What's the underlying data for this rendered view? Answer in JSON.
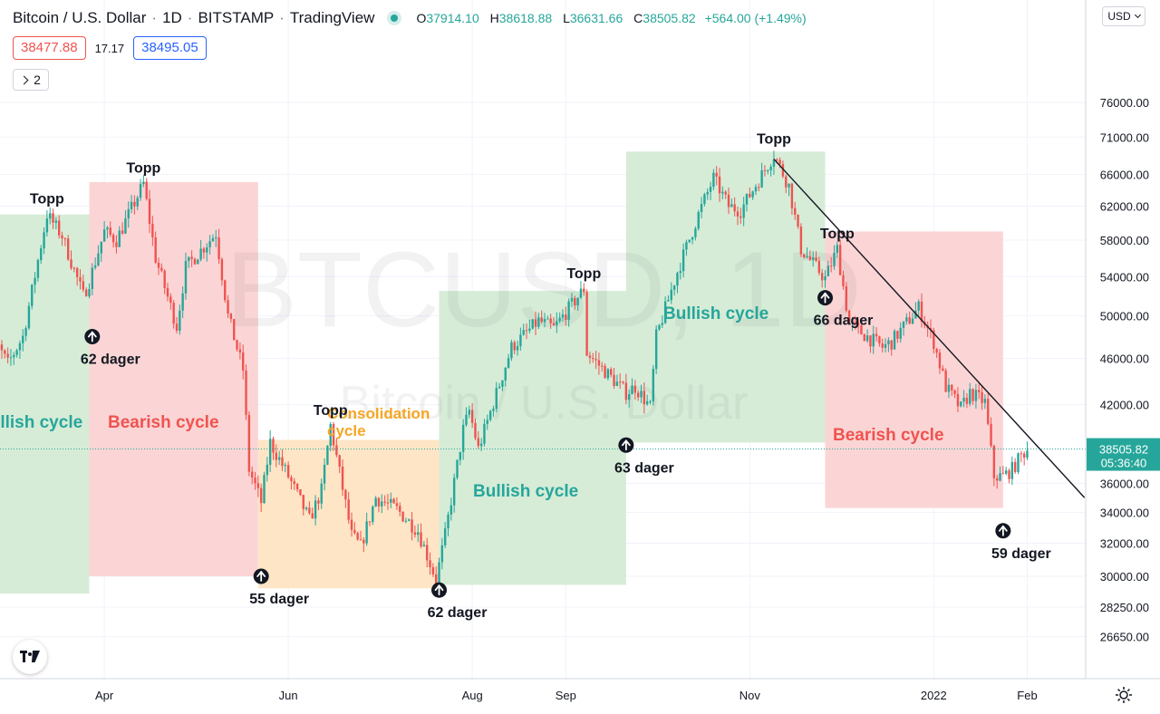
{
  "header": {
    "symbol": "Bitcoin / U.S. Dollar",
    "interval": "1D",
    "exchange": "BITSTAMP",
    "platform": "TradingView",
    "open_label": "O",
    "open": "37914.10",
    "high_label": "H",
    "high": "38618.88",
    "low_label": "L",
    "low": "36631.66",
    "close_label": "C",
    "close": "38505.82",
    "change": "+564.00 (+1.49%)",
    "bid": "38477.88",
    "spread": "17.17",
    "ask": "38495.05",
    "indicators_count": "2",
    "currency": "USD"
  },
  "watermark": {
    "symbol": "BTCUSD, 1D",
    "name": "Bitcoin / U.S. Dollar"
  },
  "colors": {
    "up": "#26a69a",
    "down": "#ef5350",
    "bull_zone": "#d6ecd7",
    "bear_zone": "#fbd5d5",
    "consol_zone": "#fde5c6",
    "bull_text": "#26a69a",
    "bear_text": "#ef5350",
    "consol_text": "#f5a623",
    "trendline": "#131722",
    "price_line": "#26a69a"
  },
  "chart_data": {
    "type": "candlestick",
    "symbol": "BTCUSD",
    "interval": "1D",
    "y_axis": {
      "scale": "log",
      "ticks": [
        26650,
        28250,
        30000,
        32000,
        34000,
        36000,
        42000,
        46000,
        50000,
        54000,
        58000,
        62000,
        66000,
        71000,
        76000
      ],
      "tick_labels": [
        "26650.00",
        "28250.00",
        "30000.00",
        "32000.00",
        "34000.00",
        "36000.00",
        "42000.00",
        "46000.00",
        "50000.00",
        "54000.00",
        "58000.00",
        "62000.00",
        "66000.00",
        "71000.00",
        "76000.00"
      ]
    },
    "x_axis": {
      "range": [
        "2021-02-20",
        "2022-02-20"
      ],
      "ticks": [
        {
          "date": "2021-04-01",
          "label": "Apr"
        },
        {
          "date": "2021-06-01",
          "label": "Jun"
        },
        {
          "date": "2021-08-01",
          "label": "Aug"
        },
        {
          "date": "2021-09-01",
          "label": "Sep"
        },
        {
          "date": "2021-11-01",
          "label": "Nov"
        },
        {
          "date": "2022-01-01",
          "label": "2022"
        },
        {
          "date": "2022-02-01",
          "label": "Feb"
        }
      ]
    },
    "price_anchors": [
      [
        "2021-02-20",
        54000
      ],
      [
        "2021-02-22",
        48500
      ],
      [
        "2021-02-28",
        45500
      ],
      [
        "2021-03-05",
        48000
      ],
      [
        "2021-03-13",
        61000
      ],
      [
        "2021-03-18",
        58500
      ],
      [
        "2021-03-25",
        52000
      ],
      [
        "2021-03-27",
        53500
      ],
      [
        "2021-04-01",
        59000
      ],
      [
        "2021-04-05",
        58000
      ],
      [
        "2021-04-14",
        64800
      ],
      [
        "2021-04-18",
        56000
      ],
      [
        "2021-04-25",
        49000
      ],
      [
        "2021-04-28",
        55000
      ],
      [
        "2021-05-08",
        58800
      ],
      [
        "2021-05-12",
        50000
      ],
      [
        "2021-05-17",
        45000
      ],
      [
        "2021-05-19",
        37000
      ],
      [
        "2021-05-23",
        34700
      ],
      [
        "2021-05-26",
        39000
      ],
      [
        "2021-06-01",
        36500
      ],
      [
        "2021-06-08",
        33500
      ],
      [
        "2021-06-12",
        35500
      ],
      [
        "2021-06-15",
        40300
      ],
      [
        "2021-06-22",
        32500
      ],
      [
        "2021-06-25",
        31800
      ],
      [
        "2021-06-30",
        35000
      ],
      [
        "2021-07-07",
        34200
      ],
      [
        "2021-07-14",
        32800
      ],
      [
        "2021-07-20",
        29800
      ],
      [
        "2021-07-23",
        32500
      ],
      [
        "2021-07-29",
        40000
      ],
      [
        "2021-07-31",
        41500
      ],
      [
        "2021-08-03",
        38500
      ],
      [
        "2021-08-14",
        47000
      ],
      [
        "2021-08-23",
        49500
      ],
      [
        "2021-08-28",
        48800
      ],
      [
        "2021-09-07",
        52700
      ],
      [
        "2021-09-08",
        46500
      ],
      [
        "2021-09-21",
        43000
      ],
      [
        "2021-09-24",
        43500
      ],
      [
        "2021-09-29",
        41800
      ],
      [
        "2021-10-01",
        48000
      ],
      [
        "2021-10-08",
        54500
      ],
      [
        "2021-10-15",
        61000
      ],
      [
        "2021-10-20",
        65500
      ],
      [
        "2021-10-25",
        62000
      ],
      [
        "2021-10-29",
        61500
      ],
      [
        "2021-11-09",
        68600
      ],
      [
        "2021-11-14",
        64500
      ],
      [
        "2021-11-18",
        57000
      ],
      [
        "2021-11-26",
        53800
      ],
      [
        "2021-11-30",
        57000
      ],
      [
        "2021-12-04",
        49200
      ],
      [
        "2021-12-10",
        48000
      ],
      [
        "2021-12-15",
        47000
      ],
      [
        "2021-12-18",
        47500
      ],
      [
        "2021-12-27",
        50800
      ],
      [
        "2022-01-01",
        47500
      ],
      [
        "2022-01-05",
        43500
      ],
      [
        "2022-01-10",
        41700
      ],
      [
        "2022-01-13",
        43000
      ],
      [
        "2022-01-18",
        42200
      ],
      [
        "2022-01-21",
        36500
      ],
      [
        "2022-01-24",
        36500
      ],
      [
        "2022-01-27",
        37000
      ],
      [
        "2022-01-30",
        38000
      ],
      [
        "2022-02-01",
        38500
      ]
    ],
    "zones": [
      {
        "type": "bull",
        "start": "2021-02-20",
        "end": "2021-03-27",
        "low": 29000,
        "high": 61000,
        "label": "Bullish cycle"
      },
      {
        "type": "bear",
        "start": "2021-03-27",
        "end": "2021-05-22",
        "low": 30000,
        "high": 65000,
        "label": "Bearish cycle"
      },
      {
        "type": "consol",
        "start": "2021-05-22",
        "end": "2021-07-21",
        "low": 29300,
        "high": 39200,
        "label": "Consolidation cycle"
      },
      {
        "type": "bull",
        "start": "2021-07-21",
        "end": "2021-09-21",
        "low": 29500,
        "high": 52500,
        "label": "Bullish cycle"
      },
      {
        "type": "bull",
        "start": "2021-09-21",
        "end": "2021-11-26",
        "low": 39000,
        "high": 69000,
        "label": "Bullish cycle"
      },
      {
        "type": "bear",
        "start": "2021-11-26",
        "end": "2022-01-24",
        "low": 34300,
        "high": 59000,
        "label": "Bearish cycle"
      }
    ],
    "topp_labels": [
      {
        "text": "Topp",
        "date": "2021-03-13",
        "price": 61000
      },
      {
        "text": "Topp",
        "date": "2021-04-14",
        "price": 64800
      },
      {
        "text": "Topp",
        "date": "2021-06-15",
        "price": 40300
      },
      {
        "text": "Topp",
        "date": "2021-09-07",
        "price": 52700
      },
      {
        "text": "Topp",
        "date": "2021-11-09",
        "price": 68600
      },
      {
        "text": "Topp",
        "date": "2021-11-30",
        "price": 57000
      }
    ],
    "bottom_markers": [
      {
        "text": "62 dager",
        "date": "2021-03-28",
        "price": 48000
      },
      {
        "text": "55 dager",
        "date": "2021-05-23",
        "price": 30000
      },
      {
        "text": "62 dager",
        "date": "2021-07-21",
        "price": 29200
      },
      {
        "text": "63 dager",
        "date": "2021-09-21",
        "price": 38800
      },
      {
        "text": "66 dager",
        "date": "2021-11-26",
        "price": 51800
      },
      {
        "text": "59 dager",
        "date": "2022-01-24",
        "price": 32800
      }
    ],
    "trendline": {
      "start": {
        "date": "2021-11-09",
        "price": 68000
      },
      "end": {
        "date": "2022-02-20",
        "price": 35000
      }
    },
    "last_price": {
      "value": "38505.82",
      "countdown": "05:36:40"
    }
  }
}
